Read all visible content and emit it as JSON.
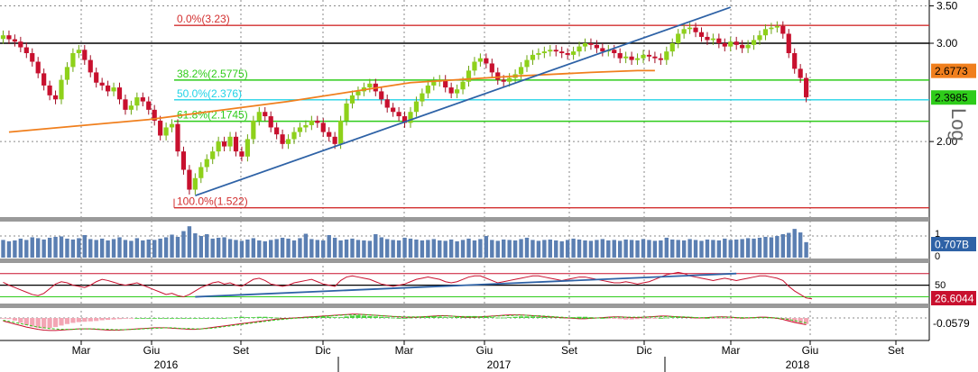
{
  "chart_data": {
    "type": "candlestick",
    "log_scale": true,
    "bar_interval": "weekly",
    "x_axis": {
      "months": [
        "Mar",
        "Giu",
        "Set",
        "Dic",
        "Mar",
        "Giu",
        "Set",
        "Dic",
        "Mar",
        "Giu",
        "Set"
      ],
      "years": [
        "2016",
        "2017",
        "2018"
      ]
    },
    "price_panel": {
      "y_ticks": [
        {
          "value": 3.5,
          "label": "3.50"
        },
        {
          "value": 3.0,
          "label": "3.00"
        },
        {
          "value": 2.0,
          "label": "2.00"
        }
      ],
      "ylim": [
        1.47,
        3.52
      ],
      "scale_note": "Log",
      "fibonacci_levels": [
        {
          "label": "0.0%(3.23)",
          "value": 3.23,
          "color": "#d32f2f"
        },
        {
          "label": "38.2%(2.5775)",
          "value": 2.5775,
          "color": "#2ecc1a"
        },
        {
          "label": "50.0%(2.376)",
          "value": 2.376,
          "color": "#22d3e6"
        },
        {
          "label": "61.8%(2.1745)",
          "value": 2.1745,
          "color": "#2ecc1a"
        },
        {
          "label": "100.0%(1.522)",
          "value": 1.522,
          "color": "#d32f2f"
        }
      ],
      "horizontal_line": {
        "value": 3.0,
        "color": "#000000"
      },
      "last_price": {
        "label": "2.3985",
        "value": 2.3985
      },
      "moving_average": {
        "label": "2.6773",
        "value": 2.6773,
        "color": "#f07f1d",
        "points": [
          [
            1,
            2.08
          ],
          [
            25,
            2.19
          ],
          [
            49,
            2.36
          ],
          [
            70,
            2.55
          ],
          [
            88,
            2.62
          ],
          [
            101,
            2.66
          ],
          [
            109,
            2.68
          ],
          [
            112,
            2.68
          ]
        ]
      },
      "trendline": {
        "start": [
          33,
          1.6
        ],
        "end": [
          125,
          3.48
        ],
        "color": "#2e62a6"
      },
      "closes": [
        3.1,
        3.05,
        3.02,
        2.95,
        2.88,
        2.78,
        2.65,
        2.52,
        2.42,
        2.38,
        2.58,
        2.72,
        2.88,
        2.92,
        2.8,
        2.66,
        2.55,
        2.52,
        2.46,
        2.5,
        2.38,
        2.28,
        2.32,
        2.4,
        2.36,
        2.28,
        2.18,
        2.05,
        2.12,
        2.15,
        1.92,
        1.78,
        1.64,
        1.72,
        1.8,
        1.86,
        1.92,
        2.0,
        1.96,
        2.04,
        1.92,
        1.88,
        2.02,
        2.18,
        2.26,
        2.22,
        2.12,
        2.06,
        1.98,
        2.02,
        2.08,
        2.12,
        2.14,
        2.18,
        2.16,
        2.08,
        2.04,
        1.98,
        2.18,
        2.34,
        2.42,
        2.46,
        2.5,
        2.54,
        2.46,
        2.38,
        2.3,
        2.26,
        2.22,
        2.16,
        2.26,
        2.36,
        2.44,
        2.52,
        2.56,
        2.58,
        2.5,
        2.44,
        2.48,
        2.56,
        2.68,
        2.78,
        2.82,
        2.76,
        2.66,
        2.58,
        2.56,
        2.6,
        2.64,
        2.72,
        2.8,
        2.86,
        2.88,
        2.9,
        2.92,
        2.9,
        2.88,
        2.86,
        2.9,
        2.96,
        3.0,
        2.98,
        2.94,
        2.9,
        2.92,
        2.88,
        2.82,
        2.84,
        2.8,
        2.82,
        2.86,
        2.84,
        2.82,
        2.8,
        2.9,
        3.0,
        3.12,
        3.18,
        3.2,
        3.14,
        3.08,
        3.04,
        3.06,
        3.0,
        2.96,
        3.02,
        2.98,
        2.94,
        2.98,
        3.04,
        3.1,
        3.18,
        3.2,
        3.22,
        3.12,
        2.88,
        2.7,
        2.6,
        2.4
      ]
    },
    "volume_panel": {
      "last_label": "0.707B",
      "values": [
        0.8,
        0.74,
        0.78,
        0.86,
        0.8,
        0.92,
        0.88,
        0.82,
        0.9,
        0.94,
        0.96,
        0.86,
        0.82,
        0.88,
        1.02,
        0.84,
        0.8,
        0.86,
        0.78,
        0.84,
        0.92,
        0.8,
        0.76,
        0.88,
        0.78,
        0.82,
        0.8,
        0.86,
        0.92,
        1.04,
        0.94,
        1.2,
        1.42,
        1.1,
        0.98,
        1.06,
        0.86,
        0.9,
        0.92,
        0.84,
        0.8,
        0.76,
        0.82,
        0.88,
        0.78,
        0.74,
        0.8,
        0.84,
        0.9,
        0.86,
        0.78,
        0.88,
        1.08,
        0.84,
        0.8,
        0.78,
        1.02,
        0.9,
        0.78,
        0.82,
        0.86,
        0.8,
        0.78,
        0.76,
        1.06,
        0.92,
        0.84,
        0.8,
        0.78,
        0.9,
        0.86,
        0.82,
        0.78,
        0.8,
        0.84,
        0.78,
        0.76,
        0.82,
        0.74,
        0.8,
        0.86,
        0.78,
        0.84,
        0.98,
        0.8,
        0.76,
        0.82,
        0.8,
        0.78,
        0.84,
        0.9,
        0.8,
        0.76,
        0.8,
        0.82,
        0.78,
        0.74,
        0.8,
        0.86,
        0.82,
        0.78,
        0.76,
        0.8,
        0.84,
        0.78,
        0.8,
        0.76,
        0.82,
        0.8,
        0.78,
        0.84,
        0.8,
        0.76,
        0.78,
        0.9,
        0.82,
        0.8,
        0.78,
        0.84,
        0.8,
        0.76,
        0.82,
        0.8,
        0.78,
        0.86,
        0.8,
        0.82,
        0.84,
        0.88,
        0.86,
        0.9,
        0.94,
        0.92,
        0.98,
        1.06,
        1.12,
        1.3,
        1.14,
        0.7
      ],
      "y_ticks": [
        "1",
        "0"
      ]
    },
    "rsi_panel": {
      "last_label": "26.6044",
      "y_ticks": [
        "50"
      ],
      "upper_band": 70,
      "lower_band": 30,
      "ylim": [
        20,
        85
      ],
      "values": [
        55,
        50,
        46,
        42,
        38,
        34,
        32,
        36,
        44,
        52,
        56,
        54,
        50,
        48,
        46,
        50,
        56,
        60,
        58,
        55,
        52,
        50,
        52,
        54,
        50,
        46,
        42,
        38,
        34,
        36,
        32,
        30,
        34,
        40,
        46,
        50,
        54,
        56,
        52,
        54,
        50,
        48,
        54,
        60,
        62,
        58,
        52,
        50,
        48,
        50,
        54,
        56,
        58,
        60,
        56,
        52,
        50,
        48,
        58,
        64,
        66,
        64,
        62,
        60,
        56,
        52,
        50,
        48,
        50,
        52,
        56,
        60,
        62,
        64,
        62,
        60,
        56,
        54,
        56,
        60,
        64,
        66,
        66,
        62,
        58,
        54,
        56,
        58,
        60,
        62,
        64,
        66,
        66,
        64,
        62,
        60,
        58,
        60,
        62,
        64,
        64,
        62,
        60,
        58,
        56,
        54,
        54,
        56,
        54,
        52,
        54,
        56,
        60,
        64,
        68,
        70,
        72,
        70,
        66,
        64,
        62,
        60,
        58,
        60,
        62,
        60,
        58,
        60,
        62,
        64,
        66,
        66,
        64,
        62,
        58,
        48,
        40,
        34,
        28,
        26.6
      ],
      "trendline": {
        "start": [
          33,
          30
        ],
        "end": [
          126,
          70
        ]
      }
    },
    "macd_panel": {
      "last_label": "-0.0579",
      "histogram": [
        -0.1,
        -0.3,
        -0.7,
        -1.3,
        -1.9,
        -2.3,
        -2.6,
        -2.8,
        -2.7,
        -2.4,
        -2.0,
        -1.6,
        -1.3,
        -1.1,
        -1.0,
        -0.9,
        -0.8,
        -0.6,
        -0.5,
        -0.4,
        -0.3,
        -0.2,
        -0.1,
        0.0,
        0.0,
        0.0,
        0.0,
        0.0,
        0.0,
        0.0,
        0.0,
        0.0,
        0.0,
        0.0,
        0.0,
        0.0,
        0.0,
        0.0,
        0.0,
        0.1,
        0.2,
        0.3,
        0.2,
        0.2,
        0.3,
        0.3,
        0.2,
        0.1,
        0.0,
        0.0,
        0.1,
        0.2,
        0.3,
        0.4,
        0.5,
        0.4,
        0.3,
        0.2,
        0.2,
        0.4,
        0.6,
        0.7,
        0.6,
        0.5,
        0.4,
        0.3,
        0.2,
        0.1,
        0.0,
        0.0,
        0.1,
        0.2,
        0.3,
        0.4,
        0.4,
        0.3,
        0.2,
        0.2,
        0.3,
        0.4,
        0.5,
        0.5,
        0.4,
        0.3,
        0.2,
        0.1,
        0.1,
        0.2,
        0.3,
        0.4,
        0.4,
        0.4,
        0.3,
        0.3,
        0.2,
        0.2,
        0.1,
        0.1,
        0.2,
        0.3,
        0.3,
        0.2,
        0.1,
        0.0,
        -0.1,
        -0.2,
        -0.3,
        -0.4,
        -0.4,
        -0.3,
        -0.2,
        -0.2,
        -0.1,
        0.0,
        0.1,
        0.2,
        0.3,
        0.3,
        0.3,
        0.2,
        0.1,
        0.0,
        -0.1,
        -0.1,
        -0.2,
        -0.1,
        -0.1,
        0.0,
        0.1,
        0.1,
        0.2,
        0.2,
        0.1,
        0.0,
        -0.3,
        -0.8,
        -1.2,
        -1.4,
        -1.6
      ],
      "macd_line": [
        -0.8,
        -1.2,
        -1.6,
        -2.0,
        -2.4,
        -2.7,
        -3.0,
        -3.2,
        -3.3,
        -3.3,
        -3.2,
        -3.1,
        -3.0,
        -2.9,
        -2.9,
        -2.9,
        -3.0,
        -3.1,
        -3.2,
        -3.2,
        -3.2,
        -3.1,
        -3.0,
        -2.9,
        -2.8,
        -2.7,
        -2.6,
        -2.6,
        -2.6,
        -2.7,
        -2.8,
        -2.9,
        -3.0,
        -3.0,
        -2.9,
        -2.7,
        -2.5,
        -2.3,
        -2.1,
        -1.9,
        -1.7,
        -1.5,
        -1.3,
        -1.1,
        -0.9,
        -0.7,
        -0.5,
        -0.3,
        -0.2,
        -0.1,
        0.0,
        0.1,
        0.2,
        0.3,
        0.4,
        0.5,
        0.6,
        0.7,
        0.8,
        0.9,
        1.0,
        1.0,
        0.9,
        0.8,
        0.7,
        0.6,
        0.5,
        0.4,
        0.3,
        0.2,
        0.2,
        0.2,
        0.3,
        0.4,
        0.5,
        0.6,
        0.6,
        0.5,
        0.4,
        0.3,
        0.2,
        0.2,
        0.3,
        0.4,
        0.5,
        0.6,
        0.7,
        0.8,
        0.8,
        0.8,
        0.7,
        0.6,
        0.5,
        0.4,
        0.3,
        0.2,
        0.1,
        0.0,
        -0.1,
        -0.2,
        -0.2,
        -0.1,
        0.0,
        0.1,
        0.2,
        0.3,
        0.3,
        0.2,
        0.1,
        0.1,
        0.2,
        0.3,
        0.4,
        0.5,
        0.5,
        0.4,
        0.3,
        0.2,
        0.1,
        0.0,
        0.0,
        0.1,
        0.2,
        0.3,
        0.3,
        0.2,
        0.1,
        0.0,
        0.0,
        0.1,
        0.2,
        0.2,
        0.1,
        -0.1,
        -0.4,
        -0.8,
        -1.2,
        -1.5,
        -1.8
      ],
      "signal_line": [
        -0.6,
        -0.9,
        -1.2,
        -1.5,
        -1.8,
        -2.1,
        -2.4,
        -2.6,
        -2.8,
        -2.9,
        -3.0,
        -3.0,
        -3.0,
        -2.9,
        -2.9,
        -2.9,
        -2.9,
        -3.0,
        -3.0,
        -3.1,
        -3.1,
        -3.1,
        -3.0,
        -3.0,
        -2.9,
        -2.8,
        -2.7,
        -2.7,
        -2.6,
        -2.6,
        -2.7,
        -2.8,
        -2.8,
        -2.9,
        -2.9,
        -2.8,
        -2.7,
        -2.5,
        -2.3,
        -2.1,
        -1.9,
        -1.7,
        -1.5,
        -1.3,
        -1.1,
        -0.9,
        -0.7,
        -0.5,
        -0.4,
        -0.2,
        -0.1,
        0.0,
        0.1,
        0.2,
        0.3,
        0.4,
        0.5,
        0.6,
        0.7,
        0.8,
        0.8,
        0.9,
        0.9,
        0.8,
        0.7,
        0.6,
        0.5,
        0.4,
        0.4,
        0.3,
        0.3,
        0.3,
        0.3,
        0.4,
        0.4,
        0.5,
        0.5,
        0.5,
        0.4,
        0.4,
        0.3,
        0.3,
        0.3,
        0.4,
        0.4,
        0.5,
        0.6,
        0.6,
        0.7,
        0.7,
        0.7,
        0.6,
        0.6,
        0.5,
        0.4,
        0.3,
        0.2,
        0.1,
        0.0,
        -0.1,
        -0.1,
        -0.1,
        0.0,
        0.0,
        0.1,
        0.2,
        0.2,
        0.2,
        0.2,
        0.2,
        0.2,
        0.2,
        0.3,
        0.3,
        0.4,
        0.4,
        0.3,
        0.3,
        0.2,
        0.1,
        0.1,
        0.1,
        0.2,
        0.2,
        0.2,
        0.2,
        0.1,
        0.1,
        0.1,
        0.1,
        0.1,
        0.1,
        0.1,
        0.0,
        -0.2,
        -0.4,
        -0.7,
        -1.0,
        -1.3
      ]
    }
  }
}
